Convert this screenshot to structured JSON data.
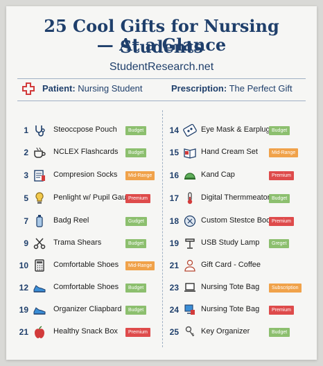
{
  "title_line1": "25 Cool Gifts for Nursing Students",
  "title_line2": "— At a Glance",
  "site": "StudentResearch.net",
  "patient": {
    "label": "Patient:",
    "value": "Nursing Student"
  },
  "prescription": {
    "label": "Prescription:",
    "value": "The Perfect Gift"
  },
  "colors": {
    "Budget": "#8cbf6e",
    "Mid-Range": "#f0a24a",
    "Premium": "#de4b4b",
    "Gudget": "#8cbf6e",
    "Greget": "#8cbf6e",
    "Subscription": "#f0a24a"
  },
  "left": [
    {
      "num": "1",
      "label": "Steoccpose Pouch",
      "badge": "Budget",
      "icon": "stethoscope-icon"
    },
    {
      "num": "2",
      "label": "NCLEX Flashcards",
      "badge": "Budget",
      "icon": "coffee-cup-icon"
    },
    {
      "num": "3",
      "label": "Compresion Socks",
      "badge": "Mid-Range",
      "icon": "book-icon"
    },
    {
      "num": "5",
      "label": "Penlight w/ Pupil Gauge",
      "badge": "Premium",
      "icon": "lightbulb-icon"
    },
    {
      "num": "7",
      "label": "Badg Reel",
      "badge": "Gudget",
      "icon": "bottle-icon"
    },
    {
      "num": "9",
      "label": "Trama Shears",
      "badge": "Budget",
      "icon": "scissors-icon"
    },
    {
      "num": "10",
      "label": "Comfortable Shoes",
      "badge": "Mid-Range",
      "icon": "calculator-icon"
    },
    {
      "num": "12",
      "label": "Comfortable Shoes",
      "badge": "Budget",
      "icon": "sneaker-icon"
    },
    {
      "num": "19",
      "label": "Organizer Cliapbard",
      "badge": "Budget",
      "icon": "sneaker-icon"
    },
    {
      "num": "21",
      "label": "Healthy Snack Box",
      "badge": "Premium",
      "icon": "apple-icon"
    }
  ],
  "right": [
    {
      "num": "14",
      "label": "Eye Mask & Earplugs",
      "badge": "Budget",
      "icon": "eye-mask-icon"
    },
    {
      "num": "15",
      "label": "Hand Cream Set",
      "badge": "Mid-Range",
      "icon": "open-book-icon"
    },
    {
      "num": "16",
      "label": "Kand Cap",
      "badge": "Premium",
      "icon": "cap-icon"
    },
    {
      "num": "17",
      "label": "Digital Thermmeator",
      "badge": "Budget",
      "icon": "thermometer-icon"
    },
    {
      "num": "18",
      "label": "Custom Stestce Book",
      "badge": "Premium",
      "icon": "stethoscope-book-icon"
    },
    {
      "num": "19",
      "label": "USB Study Lamp",
      "badge": "Greget",
      "icon": "lamp-icon"
    },
    {
      "num": "21",
      "label": "Gift Card - Coffee",
      "badge": "",
      "icon": "person-icon"
    },
    {
      "num": "23",
      "label": "Nursing Tote Bag",
      "badge": "Subscription",
      "icon": "laptop-icon"
    },
    {
      "num": "24",
      "label": "Nursing Tote Bag",
      "badge": "Premium",
      "icon": "computer-icon"
    },
    {
      "num": "25",
      "label": "Key Organizer",
      "badge": "Budget",
      "icon": "key-icon"
    }
  ]
}
